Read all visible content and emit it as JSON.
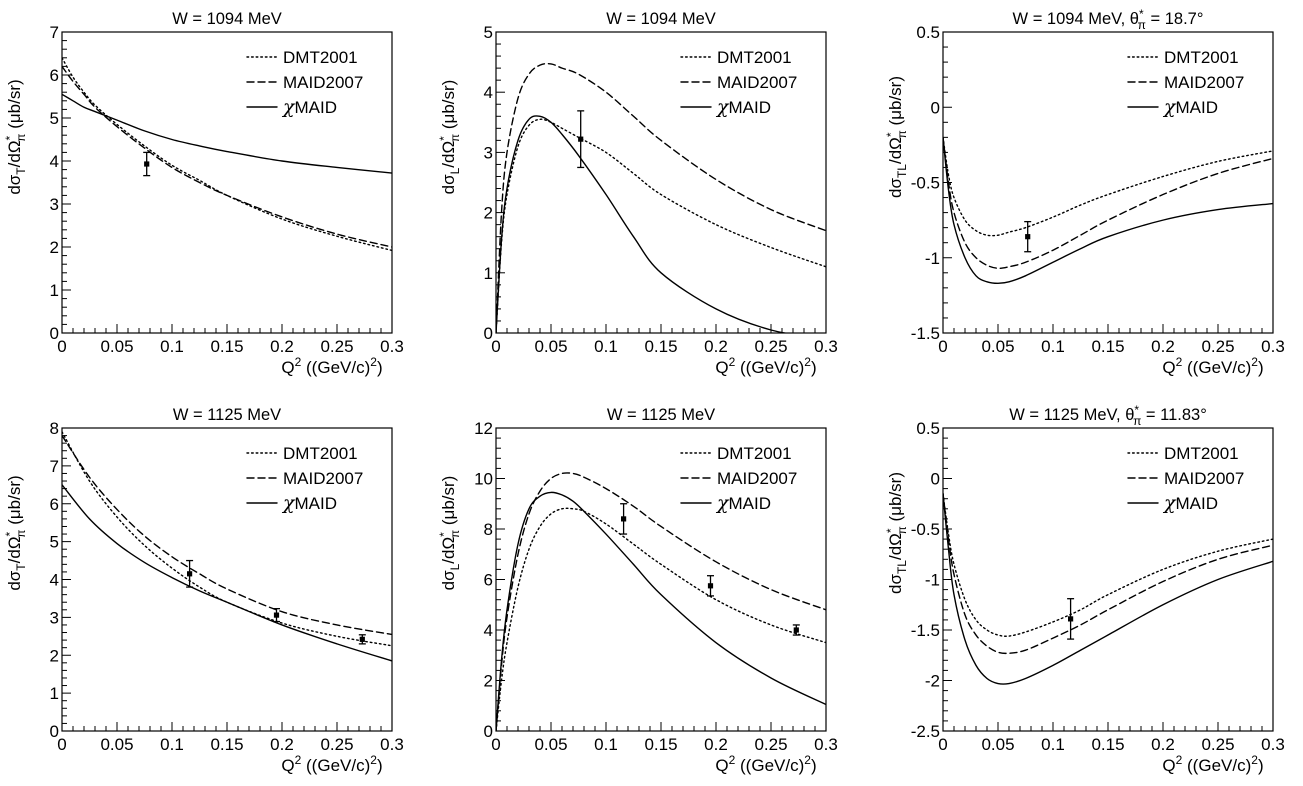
{
  "figure": {
    "legend_entries": [
      "DMT2001",
      "MAID2007",
      "χMAID"
    ],
    "series_styles": {
      "DMT2001": "dotted",
      "MAID2007": "dashed",
      "χMAID": "solid"
    },
    "line_color": "#000000",
    "background": "#ffffff"
  },
  "chart_data": [
    {
      "type": "line",
      "title": "W = 1094 MeV",
      "xlabel": "Q² ((GeV/c)²)",
      "ylabel": "dσT/dΩ*π (μb/sr)",
      "ylabel_parts": {
        "pre": "dσ",
        "sub1": "T",
        "mid": "/dΩ",
        "sup": "*",
        "sub2": "π",
        "post": " (μb/sr)"
      },
      "xlim": [
        0,
        0.3
      ],
      "ylim": [
        0,
        7
      ],
      "xticks": [
        "0",
        "0.05",
        "0.1",
        "0.15",
        "0.2",
        "0.25",
        "0.3"
      ],
      "yticks": [
        "0",
        "1",
        "2",
        "3",
        "4",
        "5",
        "6",
        "7"
      ],
      "x": [
        0,
        0.01,
        0.02,
        0.03,
        0.05,
        0.075,
        0.1,
        0.125,
        0.15,
        0.2,
        0.25,
        0.3
      ],
      "series": [
        {
          "name": "DMT2001",
          "values": [
            6.4,
            5.95,
            5.6,
            5.3,
            4.85,
            4.35,
            3.9,
            3.55,
            3.2,
            2.65,
            2.25,
            1.92
          ]
        },
        {
          "name": "MAID2007",
          "values": [
            6.2,
            5.85,
            5.55,
            5.25,
            4.8,
            4.3,
            3.85,
            3.5,
            3.2,
            2.7,
            2.3,
            2.0
          ]
        },
        {
          "name": "χMAID",
          "values": [
            5.55,
            5.4,
            5.25,
            5.15,
            4.95,
            4.7,
            4.5,
            4.35,
            4.22,
            4.0,
            3.85,
            3.72
          ]
        }
      ],
      "points": [
        {
          "x": 0.077,
          "y": 3.93,
          "err": 0.27
        }
      ]
    },
    {
      "type": "line",
      "title": "W = 1094 MeV",
      "xlabel": "Q² ((GeV/c)²)",
      "ylabel": "dσL/dΩ*π (μb/sr)",
      "ylabel_parts": {
        "pre": "dσ",
        "sub1": "L",
        "mid": "/dΩ",
        "sup": "*",
        "sub2": "π",
        "post": " (μb/sr)"
      },
      "xlim": [
        0,
        0.3
      ],
      "ylim": [
        0,
        5
      ],
      "xticks": [
        "0",
        "0.05",
        "0.1",
        "0.15",
        "0.2",
        "0.25",
        "0.3"
      ],
      "yticks": [
        "0",
        "1",
        "2",
        "3",
        "4",
        "5"
      ],
      "x": [
        0,
        0.005,
        0.01,
        0.02,
        0.03,
        0.04,
        0.05,
        0.06,
        0.075,
        0.1,
        0.125,
        0.15,
        0.2,
        0.25,
        0.3
      ],
      "series": [
        {
          "name": "DMT2001",
          "values": [
            0,
            1.5,
            2.3,
            3.1,
            3.45,
            3.55,
            3.5,
            3.4,
            3.25,
            3.0,
            2.65,
            2.3,
            1.8,
            1.42,
            1.1
          ]
        },
        {
          "name": "MAID2007",
          "values": [
            0,
            2.0,
            3.0,
            3.9,
            4.3,
            4.45,
            4.47,
            4.4,
            4.3,
            4.0,
            3.6,
            3.2,
            2.55,
            2.05,
            1.7
          ]
        },
        {
          "name": "χMAID",
          "values": [
            0,
            1.55,
            2.4,
            3.2,
            3.55,
            3.6,
            3.5,
            3.3,
            2.95,
            2.3,
            1.6,
            1.0,
            0.4,
            0.05,
            -0.1
          ]
        }
      ],
      "points": [
        {
          "x": 0.077,
          "y": 3.22,
          "err": 0.47
        }
      ]
    },
    {
      "type": "line",
      "title": "W = 1094 MeV, θ*π = 18.7°",
      "title_parts": {
        "pre": "W = 1094 MeV, θ",
        "sup": "*",
        "sub": "π",
        "post": " = 18.7°"
      },
      "xlabel": "Q² ((GeV/c)²)",
      "ylabel": "dσTL/dΩ*π (μb/sr)",
      "ylabel_parts": {
        "pre": "dσ",
        "sub1": "TL",
        "mid": "/dΩ",
        "sup": "*",
        "sub2": "π",
        "post": " (μb/sr)"
      },
      "xlim": [
        0,
        0.3
      ],
      "ylim": [
        -1.5,
        0.5
      ],
      "xticks": [
        "0",
        "0.05",
        "0.1",
        "0.15",
        "0.2",
        "0.25",
        "0.3"
      ],
      "yticks": [
        "-1.5",
        "-1",
        "-0.5",
        "0",
        "0.5"
      ],
      "x": [
        0,
        0.005,
        0.01,
        0.02,
        0.03,
        0.04,
        0.05,
        0.06,
        0.075,
        0.1,
        0.125,
        0.15,
        0.2,
        0.25,
        0.3
      ],
      "series": [
        {
          "name": "DMT2001",
          "values": [
            -0.2,
            -0.45,
            -0.6,
            -0.75,
            -0.82,
            -0.85,
            -0.85,
            -0.83,
            -0.8,
            -0.73,
            -0.65,
            -0.58,
            -0.46,
            -0.36,
            -0.29
          ]
        },
        {
          "name": "MAID2007",
          "values": [
            -0.2,
            -0.5,
            -0.7,
            -0.9,
            -1.0,
            -1.05,
            -1.07,
            -1.06,
            -1.03,
            -0.95,
            -0.85,
            -0.75,
            -0.58,
            -0.44,
            -0.34
          ]
        },
        {
          "name": "χMAID",
          "values": [
            -0.2,
            -0.55,
            -0.78,
            -1.0,
            -1.12,
            -1.16,
            -1.17,
            -1.16,
            -1.12,
            -1.03,
            -0.94,
            -0.86,
            -0.75,
            -0.68,
            -0.64
          ]
        }
      ],
      "points": [
        {
          "x": 0.077,
          "y": -0.86,
          "err": 0.1
        }
      ]
    },
    {
      "type": "line",
      "title": "W = 1125 MeV",
      "xlabel": "Q² ((GeV/c)²)",
      "ylabel": "dσT/dΩ*π (μb/sr)",
      "ylabel_parts": {
        "pre": "dσ",
        "sub1": "T",
        "mid": "/dΩ",
        "sup": "*",
        "sub2": "π",
        "post": " (μb/sr)"
      },
      "xlim": [
        0,
        0.3
      ],
      "ylim": [
        0,
        8
      ],
      "xticks": [
        "0",
        "0.05",
        "0.1",
        "0.15",
        "0.2",
        "0.25",
        "0.3"
      ],
      "yticks": [
        "0",
        "1",
        "2",
        "3",
        "4",
        "5",
        "6",
        "7",
        "8"
      ],
      "x": [
        0,
        0.025,
        0.05,
        0.075,
        0.1,
        0.125,
        0.15,
        0.2,
        0.25,
        0.3
      ],
      "series": [
        {
          "name": "DMT2001",
          "values": [
            7.9,
            6.6,
            5.65,
            4.9,
            4.3,
            3.8,
            3.4,
            2.85,
            2.5,
            2.25
          ]
        },
        {
          "name": "MAID2007",
          "values": [
            7.8,
            6.7,
            5.85,
            5.15,
            4.6,
            4.15,
            3.75,
            3.15,
            2.8,
            2.55
          ]
        },
        {
          "name": "χMAID",
          "values": [
            6.5,
            5.6,
            4.95,
            4.45,
            4.05,
            3.7,
            3.4,
            2.8,
            2.3,
            1.85
          ]
        }
      ],
      "points": [
        {
          "x": 0.116,
          "y": 4.15,
          "err": 0.35
        },
        {
          "x": 0.195,
          "y": 3.06,
          "err": 0.17
        },
        {
          "x": 0.273,
          "y": 2.42,
          "err": 0.12
        }
      ]
    },
    {
      "type": "line",
      "title": "W = 1125 MeV",
      "xlabel": "Q² ((GeV/c)²)",
      "ylabel": "dσL/dΩ*π (μb/sr)",
      "ylabel_parts": {
        "pre": "dσ",
        "sub1": "L",
        "mid": "/dΩ",
        "sup": "*",
        "sub2": "π",
        "post": " (μb/sr)"
      },
      "xlim": [
        0,
        0.3
      ],
      "ylim": [
        0,
        12
      ],
      "xticks": [
        "0",
        "0.05",
        "0.1",
        "0.15",
        "0.2",
        "0.25",
        "0.3"
      ],
      "yticks": [
        "0",
        "2",
        "4",
        "6",
        "8",
        "10",
        "12"
      ],
      "x": [
        0,
        0.005,
        0.01,
        0.02,
        0.03,
        0.04,
        0.05,
        0.06,
        0.07,
        0.08,
        0.1,
        0.125,
        0.15,
        0.2,
        0.25,
        0.3
      ],
      "series": [
        {
          "name": "DMT2001",
          "values": [
            0,
            2.0,
            3.5,
            5.7,
            7.2,
            8.1,
            8.6,
            8.8,
            8.8,
            8.7,
            8.2,
            7.4,
            6.6,
            5.2,
            4.2,
            3.5
          ]
        },
        {
          "name": "MAID2007",
          "values": [
            0,
            2.6,
            4.5,
            7.0,
            8.6,
            9.5,
            10.0,
            10.2,
            10.2,
            10.05,
            9.6,
            8.9,
            8.1,
            6.7,
            5.6,
            4.8
          ]
        },
        {
          "name": "χMAID",
          "values": [
            0,
            2.8,
            4.8,
            7.4,
            8.8,
            9.3,
            9.45,
            9.35,
            9.1,
            8.7,
            7.8,
            6.6,
            5.4,
            3.5,
            2.1,
            1.05
          ]
        }
      ],
      "points": [
        {
          "x": 0.116,
          "y": 8.4,
          "err": 0.6
        },
        {
          "x": 0.195,
          "y": 5.75,
          "err": 0.4
        },
        {
          "x": 0.273,
          "y": 4.0,
          "err": 0.2
        }
      ]
    },
    {
      "type": "line",
      "title": "W = 1125 MeV, θ*π = 11.83°",
      "title_parts": {
        "pre": "W = 1125 MeV, θ",
        "sup": "*",
        "sub": "π",
        "post": " = 11.83°"
      },
      "xlabel": "Q² ((GeV/c)²)",
      "ylabel": "dσTL/dΩ*π (μb/sr)",
      "ylabel_parts": {
        "pre": "dσ",
        "sub1": "TL",
        "mid": "/dΩ",
        "sup": "*",
        "sub2": "π",
        "post": " (μb/sr)"
      },
      "xlim": [
        0,
        0.3
      ],
      "ylim": [
        -2.5,
        0.5
      ],
      "xticks": [
        "0",
        "0.05",
        "0.1",
        "0.15",
        "0.2",
        "0.25",
        "0.3"
      ],
      "yticks": [
        "-2.5",
        "-2",
        "-1.5",
        "-1",
        "-0.5",
        "0",
        "0.5"
      ],
      "x": [
        0,
        0.005,
        0.01,
        0.02,
        0.03,
        0.04,
        0.05,
        0.06,
        0.075,
        0.1,
        0.125,
        0.15,
        0.2,
        0.25,
        0.3
      ],
      "series": [
        {
          "name": "DMT2001",
          "values": [
            -0.15,
            -0.55,
            -0.85,
            -1.2,
            -1.4,
            -1.5,
            -1.55,
            -1.56,
            -1.52,
            -1.42,
            -1.3,
            -1.15,
            -0.9,
            -0.72,
            -0.6
          ]
        },
        {
          "name": "MAID2007",
          "values": [
            -0.15,
            -0.6,
            -0.95,
            -1.35,
            -1.55,
            -1.66,
            -1.72,
            -1.73,
            -1.7,
            -1.58,
            -1.45,
            -1.3,
            -1.02,
            -0.8,
            -0.66
          ]
        },
        {
          "name": "χMAID",
          "values": [
            -0.15,
            -0.7,
            -1.15,
            -1.6,
            -1.85,
            -1.98,
            -2.03,
            -2.03,
            -1.98,
            -1.85,
            -1.7,
            -1.55,
            -1.25,
            -1.0,
            -0.82
          ]
        }
      ],
      "points": [
        {
          "x": 0.116,
          "y": -1.39,
          "err": 0.2
        }
      ]
    }
  ]
}
